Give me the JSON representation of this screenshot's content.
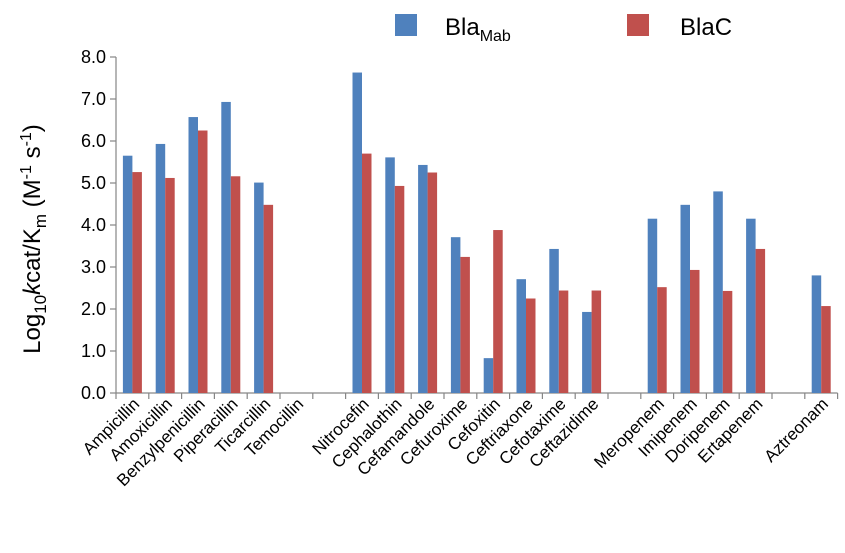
{
  "chart_data": {
    "type": "bar",
    "ylabel": {
      "prefix": "Log",
      "prefix_sub": "10",
      "italic": "k",
      "middle": "cat/K",
      "middle_sub": "m",
      "units_open": " (M",
      "units_sup1": "-1",
      "units_mid": " s",
      "units_sup2": "-1",
      "units_close": ")"
    },
    "ylim": [
      0,
      8
    ],
    "yticks": [
      "0.0",
      "1.0",
      "2.0",
      "3.0",
      "4.0",
      "5.0",
      "6.0",
      "7.0",
      "8.0"
    ],
    "grid": false,
    "legend_position": "top",
    "categories": [
      "Ampicillin",
      "Amoxicillin",
      "Benzylpenicillin",
      "Piperacillin",
      "Ticarcillin",
      "Temocillin",
      "",
      "Nitrocefin",
      "Cephalothin",
      "Cefamandole",
      "Cefuroxime",
      "Cefoxitin",
      "Ceftriaxone",
      "Cefotaxime",
      "Ceftazidime",
      "",
      "Meropenem",
      "Imipenem",
      "Doripenem",
      "Ertapenem",
      "",
      "Aztreonam"
    ],
    "series": [
      {
        "name": "Bla",
        "name_sub": "Mab",
        "color": "#4f81bd",
        "values": [
          5.65,
          5.93,
          6.57,
          6.93,
          5.01,
          null,
          null,
          7.63,
          5.61,
          5.43,
          3.71,
          0.83,
          2.71,
          3.43,
          1.93,
          null,
          4.15,
          4.48,
          4.8,
          4.15,
          null,
          2.8
        ]
      },
      {
        "name": "BlaC",
        "name_sub": "",
        "color": "#c0504d",
        "values": [
          5.26,
          5.12,
          6.25,
          5.16,
          4.48,
          null,
          null,
          5.7,
          4.93,
          5.25,
          3.24,
          3.88,
          2.25,
          2.44,
          2.44,
          null,
          2.52,
          2.93,
          2.43,
          3.43,
          null,
          2.07
        ]
      }
    ]
  }
}
